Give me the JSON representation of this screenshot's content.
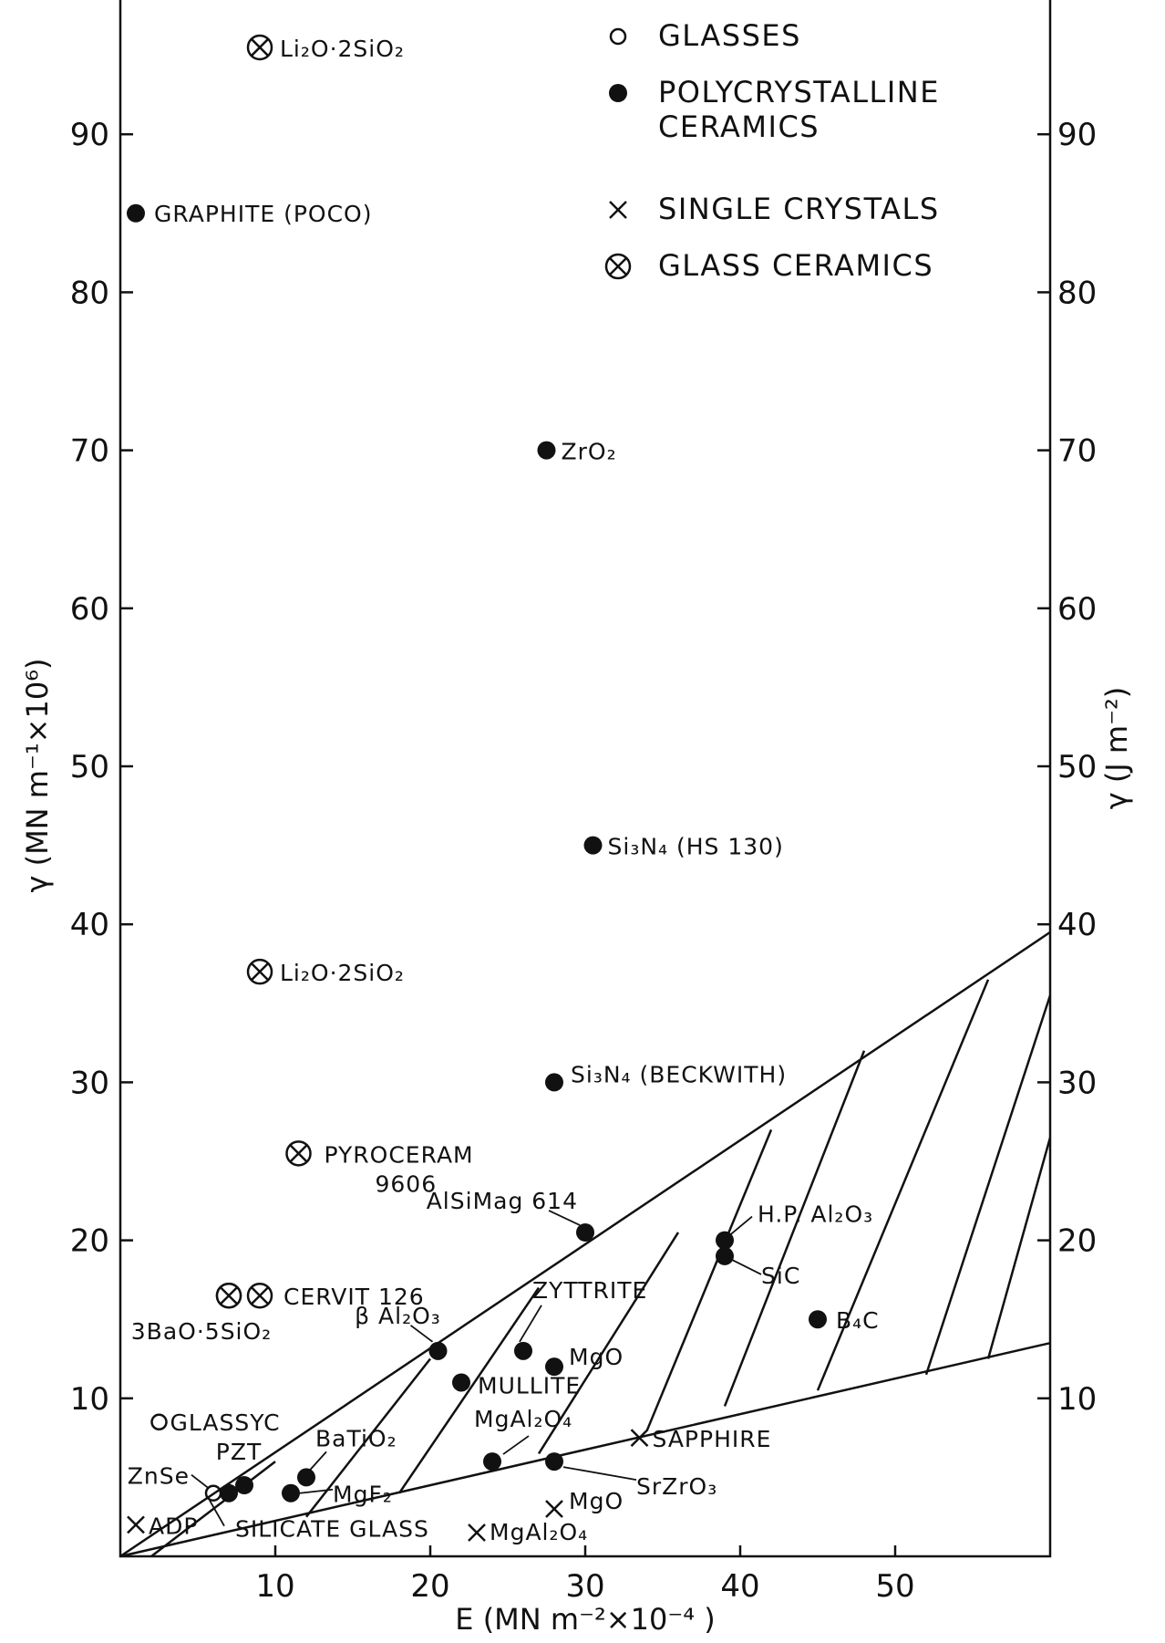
{
  "chart_data": {
    "type": "scatter",
    "xlabel": "E (MN m⁻²×10⁻⁴ )",
    "ylabel": "γ (MN m⁻¹×10⁶)",
    "ylabel_right": "γ (J m⁻²)",
    "xlim": [
      0,
      60
    ],
    "ylim": [
      0,
      100
    ],
    "x_ticks": [
      10,
      20,
      30,
      40,
      50
    ],
    "y_ticks": [
      10,
      20,
      30,
      40,
      50,
      60,
      70,
      80,
      90
    ],
    "grid": false,
    "legend_position": "top-right",
    "legend": [
      {
        "marker": "open-circle",
        "label": "GLASSES"
      },
      {
        "marker": "filled-circle",
        "label": "POLYCRYSTALLINE\nCERAMICS"
      },
      {
        "marker": "cross",
        "label": "SINGLE CRYSTALS"
      },
      {
        "marker": "circled-cross",
        "label": "GLASS CERAMICS"
      }
    ],
    "points": [
      {
        "label": "Li₂O·2SiO₂",
        "marker": "circled-cross",
        "x": 9,
        "y": 95.5
      },
      {
        "label": "GRAPHITE (POCO)",
        "marker": "filled-circle",
        "x": 1,
        "y": 85
      },
      {
        "label": "ZrO₂",
        "marker": "filled-circle",
        "x": 27.5,
        "y": 70
      },
      {
        "label": "Si₃N₄ (HS 130)",
        "marker": "filled-circle",
        "x": 30.5,
        "y": 45
      },
      {
        "label": "Li₂O·2SiO₂",
        "marker": "circled-cross",
        "x": 9,
        "y": 37
      },
      {
        "label": "Si₃N₄ (BECKWITH)",
        "marker": "filled-circle",
        "x": 28,
        "y": 30
      },
      {
        "label": "PYROCERAM\n9606",
        "marker": "circled-cross",
        "x": 11.5,
        "y": 25.5
      },
      {
        "label": "AlSiMag 614",
        "marker": "filled-circle",
        "x": 30,
        "y": 20.5
      },
      {
        "label": "H.P. Al₂O₃",
        "marker": "filled-circle",
        "x": 39,
        "y": 20
      },
      {
        "label": "SiC",
        "marker": "filled-circle",
        "x": 39,
        "y": 19
      },
      {
        "label": "CERVIT 126",
        "marker": "circled-cross",
        "x": 9,
        "y": 16.5
      },
      {
        "label": "3BaO·5SiO₂",
        "marker": "circled-cross",
        "x": 7,
        "y": 16.5
      },
      {
        "label": "B₄C",
        "marker": "filled-circle",
        "x": 45,
        "y": 15
      },
      {
        "label": "β Al₂O₃",
        "marker": "filled-circle",
        "x": 20.5,
        "y": 13
      },
      {
        "label": "ZYTTRITE",
        "marker": "filled-circle",
        "x": 26,
        "y": 13
      },
      {
        "label": "MgO",
        "marker": "filled-circle",
        "x": 28,
        "y": 12
      },
      {
        "label": "MULLITE",
        "marker": "filled-circle",
        "x": 22,
        "y": 11
      },
      {
        "label": "GLASSYC",
        "marker": "open-circle",
        "x": 2.5,
        "y": 8.5
      },
      {
        "label": "MgAl₂O₄",
        "marker": "filled-circle",
        "x": 24,
        "y": 6
      },
      {
        "label": "SAPPHIRE",
        "marker": "cross",
        "x": 33.5,
        "y": 7.5
      },
      {
        "label": "BaTiO₂",
        "marker": "filled-circle",
        "x": 12,
        "y": 5
      },
      {
        "label": "SrZrO₃",
        "marker": "filled-circle",
        "x": 28,
        "y": 6
      },
      {
        "label": "PZT",
        "marker": "filled-circle",
        "x": 8,
        "y": 4.5
      },
      {
        "label": "ZnSe",
        "marker": "open-circle",
        "x": 6,
        "y": 4
      },
      {
        "label": "",
        "marker": "filled-circle",
        "x": 7,
        "y": 4
      },
      {
        "label": "MgF₂",
        "marker": "filled-circle",
        "x": 11,
        "y": 4
      },
      {
        "label": "MgO",
        "marker": "cross",
        "x": 28,
        "y": 3
      },
      {
        "label": "ADP",
        "marker": "cross",
        "x": 1,
        "y": 2
      },
      {
        "label": "SILICATE GLASS",
        "marker": "open-circle",
        "x": 6,
        "y": 4
      },
      {
        "label": "MgAl₂O₄",
        "marker": "cross",
        "x": 23,
        "y": 1.5
      }
    ],
    "region": {
      "upper_boundary": [
        [
          0,
          0
        ],
        [
          60,
          39.5
        ]
      ],
      "lower_boundary": [
        [
          0,
          0
        ],
        [
          60,
          13.5
        ]
      ]
    }
  }
}
